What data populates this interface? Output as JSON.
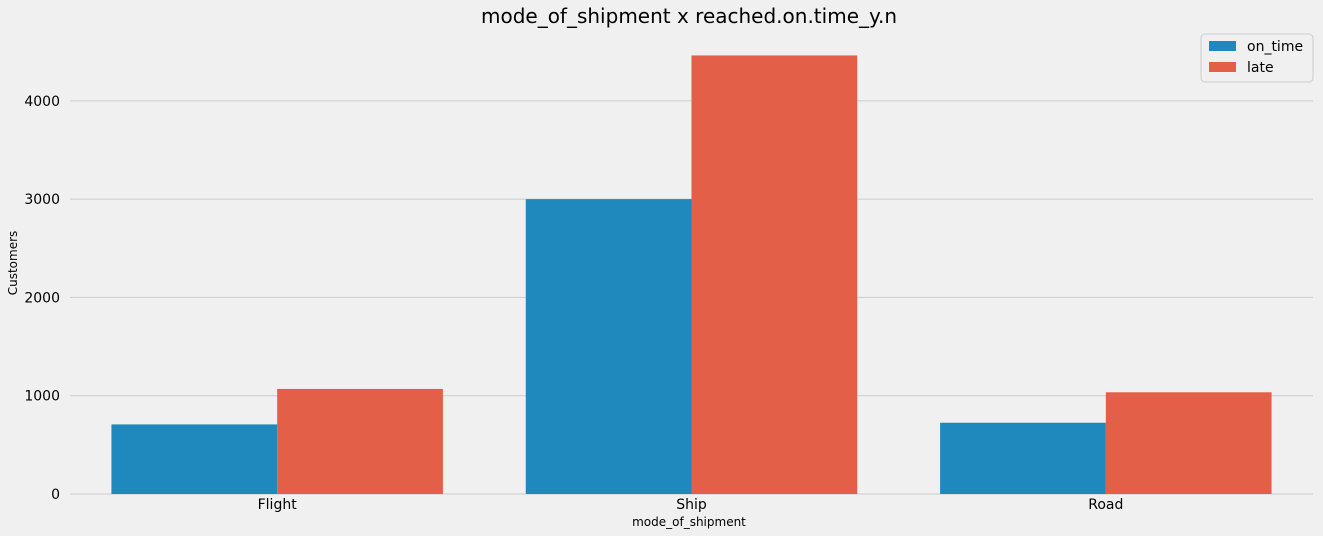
{
  "chart_data": {
    "type": "bar",
    "title": "mode_of_shipment x reached.on.time_y.n",
    "xlabel": "mode_of_shipment",
    "ylabel": "Customers",
    "categories": [
      "Flight",
      "Ship",
      "Road"
    ],
    "series": [
      {
        "name": "on_time",
        "color": "#1f88bc",
        "values": [
          708,
          3000,
          725
        ]
      },
      {
        "name": "late",
        "color": "#e45f48",
        "values": [
          1069,
          4462,
          1035
        ]
      }
    ],
    "ylim": [
      0,
      4680
    ],
    "yticks": [
      0,
      1000,
      2000,
      3000,
      4000
    ],
    "grid": "horizontal",
    "legend_position": "top-right"
  }
}
